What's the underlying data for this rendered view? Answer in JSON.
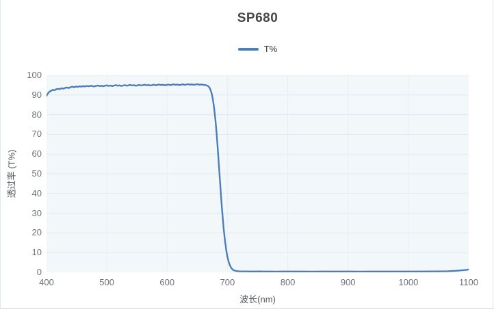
{
  "page": {
    "border_color": "#e0e3e6"
  },
  "chart_data": {
    "type": "line",
    "title": "SP680",
    "xlabel": "波长(nm)",
    "ylabel": "透过率 (T%)",
    "xlim": [
      400,
      1100
    ],
    "ylim": [
      0,
      100
    ],
    "x_ticks": [
      400,
      500,
      600,
      700,
      800,
      900,
      1000,
      1100
    ],
    "y_ticks": [
      0,
      10,
      20,
      30,
      40,
      50,
      60,
      70,
      80,
      90,
      100
    ],
    "grid": true,
    "legend_position": "top",
    "plot_bg": "#f2f7fa",
    "grid_color_h": "#e2e9ef",
    "grid_color_v": "#e9eef3",
    "series": [
      {
        "name": "T%",
        "color": "#4d7eb8",
        "data": [
          [
            400,
            89.6
          ],
          [
            402,
            90.7
          ],
          [
            404,
            91.4
          ],
          [
            406,
            91.9
          ],
          [
            408,
            92.2
          ],
          [
            410,
            92.6
          ],
          [
            413,
            92.4
          ],
          [
            416,
            92.9
          ],
          [
            419,
            93.1
          ],
          [
            422,
            93.0
          ],
          [
            425,
            93.4
          ],
          [
            428,
            93.2
          ],
          [
            431,
            93.6
          ],
          [
            434,
            93.8
          ],
          [
            437,
            93.5
          ],
          [
            440,
            94.0
          ],
          [
            443,
            94.2
          ],
          [
            446,
            93.9
          ],
          [
            449,
            94.3
          ],
          [
            452,
            94.1
          ],
          [
            455,
            94.4
          ],
          [
            458,
            94.2
          ],
          [
            461,
            94.5
          ],
          [
            464,
            94.3
          ],
          [
            467,
            94.6
          ],
          [
            470,
            94.4
          ],
          [
            473,
            94.7
          ],
          [
            476,
            94.5
          ],
          [
            479,
            94.3
          ],
          [
            482,
            94.6
          ],
          [
            485,
            94.8
          ],
          [
            488,
            94.5
          ],
          [
            491,
            94.7
          ],
          [
            494,
            94.4
          ],
          [
            497,
            94.7
          ],
          [
            500,
            94.9
          ],
          [
            503,
            94.6
          ],
          [
            506,
            94.8
          ],
          [
            509,
            94.5
          ],
          [
            512,
            94.8
          ],
          [
            515,
            95.0
          ],
          [
            518,
            94.7
          ],
          [
            521,
            94.9
          ],
          [
            524,
            94.6
          ],
          [
            527,
            94.8
          ],
          [
            530,
            95.0
          ],
          [
            533,
            94.7
          ],
          [
            536,
            94.9
          ],
          [
            539,
            95.1
          ],
          [
            542,
            94.8
          ],
          [
            545,
            95.0
          ],
          [
            548,
            94.7
          ],
          [
            551,
            94.9
          ],
          [
            554,
            95.1
          ],
          [
            557,
            94.8
          ],
          [
            560,
            95.0
          ],
          [
            563,
            95.2
          ],
          [
            566,
            94.9
          ],
          [
            569,
            95.1
          ],
          [
            572,
            94.8
          ],
          [
            575,
            95.0
          ],
          [
            578,
            95.2
          ],
          [
            581,
            94.9
          ],
          [
            584,
            95.1
          ],
          [
            587,
            95.3
          ],
          [
            590,
            95.0
          ],
          [
            593,
            95.2
          ],
          [
            596,
            94.9
          ],
          [
            599,
            95.1
          ],
          [
            602,
            95.3
          ],
          [
            605,
            95.0
          ],
          [
            608,
            95.2
          ],
          [
            611,
            95.4
          ],
          [
            614,
            95.1
          ],
          [
            617,
            95.3
          ],
          [
            620,
            95.0
          ],
          [
            623,
            95.2
          ],
          [
            626,
            95.4
          ],
          [
            629,
            95.1
          ],
          [
            632,
            95.3
          ],
          [
            635,
            95.5
          ],
          [
            638,
            95.2
          ],
          [
            641,
            95.4
          ],
          [
            644,
            95.1
          ],
          [
            647,
            95.3
          ],
          [
            650,
            95.5
          ],
          [
            653,
            95.2
          ],
          [
            656,
            95.3
          ],
          [
            659,
            95.2
          ],
          [
            662,
            95.1
          ],
          [
            665,
            94.9
          ],
          [
            668,
            94.5
          ],
          [
            670,
            93.8
          ],
          [
            672,
            92.6
          ],
          [
            674,
            90.6
          ],
          [
            676,
            87.5
          ],
          [
            678,
            83.2
          ],
          [
            680,
            77.5
          ],
          [
            682,
            70.5
          ],
          [
            684,
            62.5
          ],
          [
            686,
            53.5
          ],
          [
            688,
            44.5
          ],
          [
            690,
            36.0
          ],
          [
            692,
            28.2
          ],
          [
            694,
            21.5
          ],
          [
            696,
            15.8
          ],
          [
            698,
            11.2
          ],
          [
            700,
            7.8
          ],
          [
            702,
            5.3
          ],
          [
            704,
            3.6
          ],
          [
            706,
            2.4
          ],
          [
            708,
            1.6
          ],
          [
            710,
            1.1
          ],
          [
            713,
            0.75
          ],
          [
            716,
            0.6
          ],
          [
            720,
            0.5
          ],
          [
            730,
            0.45
          ],
          [
            740,
            0.4
          ],
          [
            750,
            0.45
          ],
          [
            760,
            0.4
          ],
          [
            770,
            0.42
          ],
          [
            780,
            0.38
          ],
          [
            790,
            0.42
          ],
          [
            800,
            0.4
          ],
          [
            820,
            0.42
          ],
          [
            840,
            0.38
          ],
          [
            860,
            0.4
          ],
          [
            880,
            0.42
          ],
          [
            900,
            0.4
          ],
          [
            920,
            0.38
          ],
          [
            940,
            0.4
          ],
          [
            960,
            0.42
          ],
          [
            980,
            0.4
          ],
          [
            1000,
            0.42
          ],
          [
            1020,
            0.4
          ],
          [
            1040,
            0.45
          ],
          [
            1055,
            0.5
          ],
          [
            1065,
            0.55
          ],
          [
            1075,
            0.7
          ],
          [
            1082,
            0.85
          ],
          [
            1088,
            1.0
          ],
          [
            1093,
            1.15
          ],
          [
            1097,
            1.3
          ],
          [
            1100,
            1.45
          ]
        ]
      }
    ]
  }
}
